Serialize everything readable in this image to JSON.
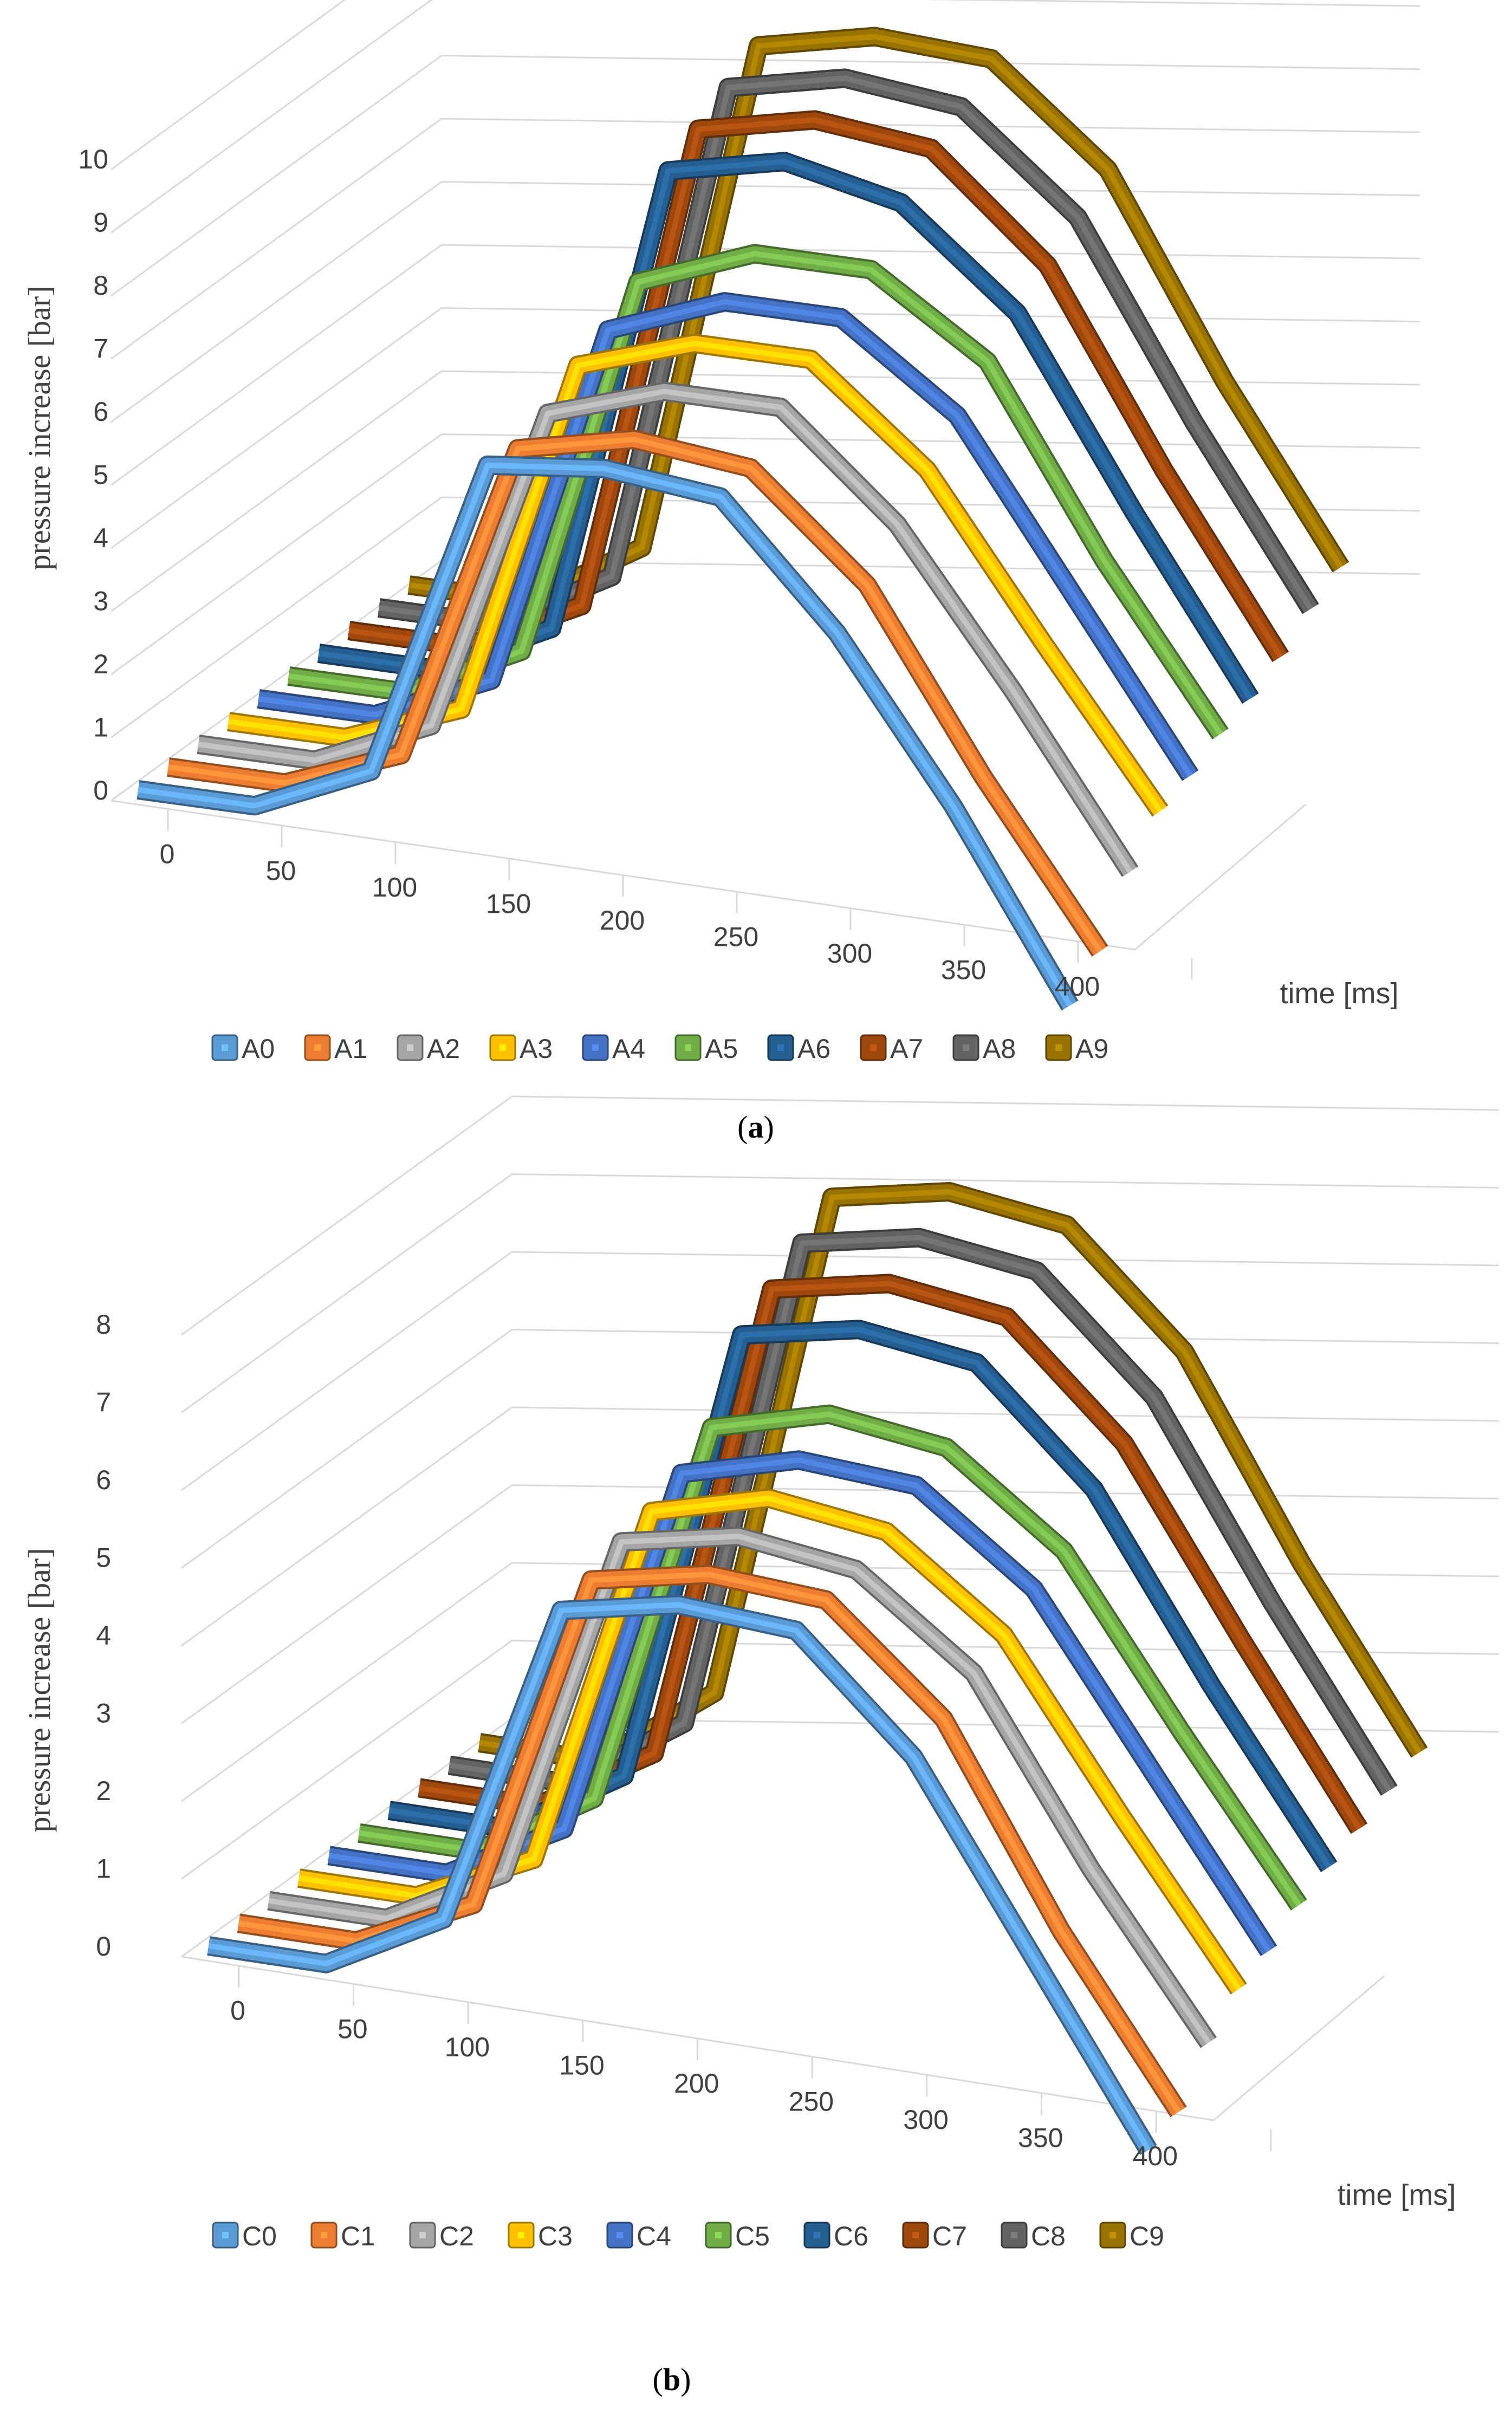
{
  "chart_data": [
    {
      "type": "line3d",
      "panel_label": "a",
      "xlabel": "time [ms]",
      "ylabel": "pressure increase [bar]",
      "x": [
        0,
        50,
        100,
        150,
        200,
        250,
        300,
        350,
        400
      ],
      "x_ticks": [
        "0",
        "50",
        "100",
        "150",
        "200",
        "250",
        "300",
        "350",
        "400"
      ],
      "y_ticks": [
        "0",
        "1",
        "2",
        "3",
        "4",
        "5",
        "6",
        "7",
        "8",
        "9",
        "10"
      ],
      "ylim": [
        0,
        10
      ],
      "series": [
        {
          "name": "A0",
          "color": "#5b9bd5",
          "values": [
            0,
            0,
            0.8,
            5.9,
            6.1,
            5.9,
            4.0,
            1.5,
            -1.4
          ]
        },
        {
          "name": "A1",
          "color": "#ed7d31",
          "values": [
            0,
            0,
            0.7,
            5.8,
            6.2,
            6.0,
            4.4,
            1.6,
            -0.9
          ]
        },
        {
          "name": "A2",
          "color": "#a5a5a5",
          "values": [
            0,
            0,
            0.8,
            6.0,
            6.6,
            6.6,
            5.0,
            2.6,
            0.0
          ]
        },
        {
          "name": "A3",
          "color": "#ffc000",
          "values": [
            0,
            0,
            0.7,
            6.4,
            7.0,
            7.0,
            5.5,
            3.0,
            0.6
          ]
        },
        {
          "name": "A4",
          "color": "#4472c4",
          "values": [
            0,
            0,
            0.8,
            6.6,
            7.3,
            7.3,
            6.0,
            3.4,
            0.8
          ]
        },
        {
          "name": "A5",
          "color": "#70ad47",
          "values": [
            0,
            0,
            0.9,
            7.0,
            7.7,
            7.7,
            6.5,
            3.6,
            1.1
          ]
        },
        {
          "name": "A6",
          "color": "#255e91",
          "values": [
            0,
            0,
            0.9,
            8.4,
            8.8,
            8.4,
            6.9,
            4.0,
            1.3
          ]
        },
        {
          "name": "A7",
          "color": "#9e480e",
          "values": [
            0,
            0,
            0.9,
            8.7,
            9.1,
            8.9,
            7.3,
            4.3,
            1.6
          ]
        },
        {
          "name": "A8",
          "color": "#636363",
          "values": [
            0,
            0,
            1.0,
            9.0,
            9.4,
            9.2,
            7.7,
            4.7,
            2.0
          ]
        },
        {
          "name": "A9",
          "color": "#997300",
          "values": [
            0,
            0,
            1.1,
            9.3,
            9.7,
            9.6,
            8.1,
            5.0,
            2.3
          ]
        }
      ],
      "legend": "bottom"
    },
    {
      "type": "line3d",
      "panel_label": "b",
      "xlabel": "time [ms]",
      "ylabel": "pressure increase [bar]",
      "x": [
        0,
        50,
        100,
        150,
        200,
        250,
        300,
        350,
        400
      ],
      "x_ticks": [
        "0",
        "50",
        "100",
        "150",
        "200",
        "250",
        "300",
        "350",
        "400"
      ],
      "y_ticks": [
        "0",
        "1",
        "2",
        "3",
        "4",
        "5",
        "6",
        "7",
        "8"
      ],
      "ylim": [
        0,
        8
      ],
      "series": [
        {
          "name": "C0",
          "color": "#5b9bd5",
          "values": [
            0,
            0,
            0.8,
            5.0,
            5.3,
            5.2,
            3.8,
            1.5,
            -0.8
          ]
        },
        {
          "name": "C1",
          "color": "#ed7d31",
          "values": [
            0,
            0,
            0.7,
            5.1,
            5.4,
            5.3,
            4.0,
            1.5,
            -0.6
          ]
        },
        {
          "name": "C2",
          "color": "#a5a5a5",
          "values": [
            0,
            0,
            0.8,
            5.3,
            5.6,
            5.4,
            4.3,
            2.0,
            0.0
          ]
        },
        {
          "name": "C3",
          "color": "#ffc000",
          "values": [
            0,
            0,
            0.7,
            5.4,
            5.8,
            5.6,
            4.5,
            2.4,
            0.4
          ]
        },
        {
          "name": "C4",
          "color": "#4472c4",
          "values": [
            0,
            0,
            0.8,
            5.6,
            6.0,
            5.9,
            4.8,
            2.7,
            0.6
          ]
        },
        {
          "name": "C5",
          "color": "#70ad47",
          "values": [
            0,
            0,
            0.9,
            5.9,
            6.3,
            6.1,
            5.0,
            2.9,
            0.9
          ]
        },
        {
          "name": "C6",
          "color": "#255e91",
          "values": [
            0,
            0,
            0.9,
            6.8,
            7.1,
            6.9,
            5.5,
            3.2,
            1.1
          ]
        },
        {
          "name": "C7",
          "color": "#9e480e",
          "values": [
            0,
            0,
            0.9,
            7.1,
            7.4,
            7.2,
            5.8,
            3.5,
            1.3
          ]
        },
        {
          "name": "C8",
          "color": "#636363",
          "values": [
            0,
            0,
            1.0,
            7.4,
            7.7,
            7.5,
            6.1,
            3.7,
            1.5
          ]
        },
        {
          "name": "C9",
          "color": "#997300",
          "values": [
            0,
            0,
            1.1,
            7.7,
            8.0,
            7.8,
            6.4,
            3.9,
            1.7
          ]
        }
      ],
      "legend": "bottom"
    }
  ],
  "captions": {
    "a_open": "(",
    "a_letter": "a",
    "a_close": ")",
    "b_open": "(",
    "b_letter": "b",
    "b_close": ")"
  }
}
